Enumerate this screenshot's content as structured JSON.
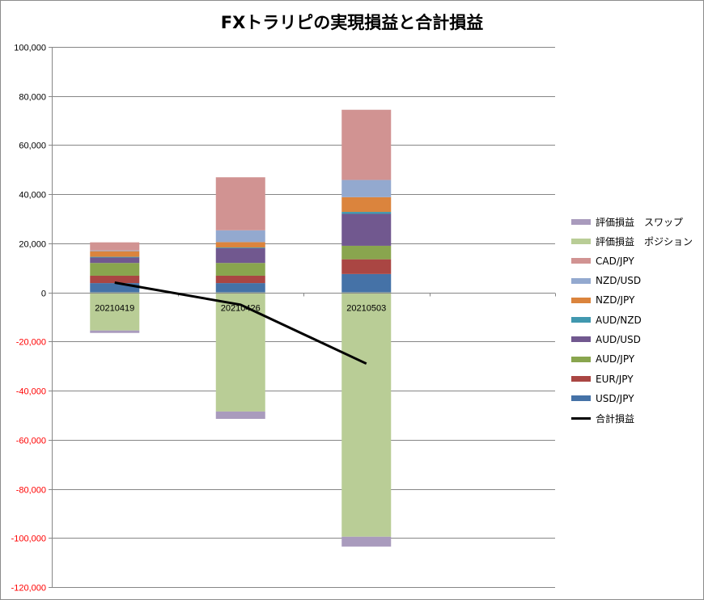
{
  "chart_data": {
    "type": "bar",
    "stacked": true,
    "title": "FXトラリピの実現損益と合計損益",
    "categories": [
      "20210419",
      "20210426",
      "20210503",
      ""
    ],
    "ylim": [
      -120000,
      100000
    ],
    "yticks": [
      100000,
      80000,
      60000,
      40000,
      20000,
      0,
      -20000,
      -40000,
      -60000,
      -80000,
      -100000,
      -120000
    ],
    "ytick_labels": [
      "100,000",
      "80,000",
      "60,000",
      "40,000",
      "20,000",
      "0",
      "-20,000",
      "-40,000",
      "-60,000",
      "-80,000",
      "-100,000",
      "-120,000"
    ],
    "grid": true,
    "legend_position": "right",
    "negative_tick_color": "#ff0000",
    "series": [
      {
        "name": "USD/JPY",
        "color": "#4572a7",
        "values": [
          3800,
          3800,
          7500,
          null
        ]
      },
      {
        "name": "EUR/JPY",
        "color": "#aa4643",
        "values": [
          3000,
          3000,
          6000,
          null
        ]
      },
      {
        "name": "AUD/JPY",
        "color": "#89a54e",
        "values": [
          5200,
          5200,
          5500,
          null
        ]
      },
      {
        "name": "AUD/USD",
        "color": "#71588f",
        "values": [
          2200,
          6000,
          13000,
          null
        ]
      },
      {
        "name": "AUD/NZD",
        "color": "#4198af",
        "values": [
          300,
          300,
          800,
          null
        ]
      },
      {
        "name": "NZD/JPY",
        "color": "#db843d",
        "values": [
          2300,
          2200,
          6000,
          null
        ]
      },
      {
        "name": "NZD/USD",
        "color": "#93a9cf",
        "values": [
          300,
          4800,
          7000,
          null
        ]
      },
      {
        "name": "CAD/JPY",
        "color": "#d19392",
        "values": [
          3300,
          21600,
          28600,
          null
        ]
      },
      {
        "name": "評価損益　ポジション",
        "color": "#b9cd96",
        "values": [
          -15500,
          -48500,
          -99500,
          null
        ]
      },
      {
        "name": "評価損益　スワップ",
        "color": "#a99bbd",
        "values": [
          -1000,
          -3000,
          -4000,
          null
        ]
      }
    ],
    "line_series": {
      "name": "合計損益",
      "color": "#000000",
      "values": [
        4000,
        -5000,
        -29000,
        null
      ]
    }
  }
}
